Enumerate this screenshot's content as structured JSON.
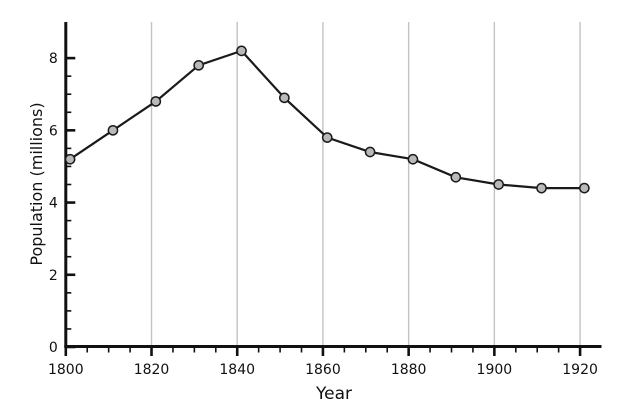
{
  "chart_data": {
    "type": "line",
    "title": "",
    "xlabel": "Year",
    "ylabel": "Population (millions)",
    "x": [
      1801,
      1811,
      1821,
      1831,
      1841,
      1851,
      1861,
      1871,
      1881,
      1891,
      1901,
      1911,
      1921
    ],
    "series": [
      {
        "name": "Population (millions)",
        "values": [
          5.2,
          6.0,
          6.8,
          7.8,
          8.2,
          6.9,
          5.8,
          5.4,
          5.2,
          4.7,
          4.5,
          4.4,
          4.4
        ]
      }
    ],
    "xlim": [
      1800,
      1925
    ],
    "ylim": [
      0,
      9
    ],
    "x_major_ticks": [
      1800,
      1820,
      1840,
      1860,
      1880,
      1900,
      1920
    ],
    "x_tick_labels": [
      "1800",
      "1820",
      "1840",
      "1860",
      "1880",
      "1900",
      "1920"
    ],
    "x_minor_tick_step": 5,
    "x_minor_tick_max": 1920,
    "y_major_ticks": [
      0,
      2,
      4,
      6,
      8
    ],
    "y_tick_labels": [
      "0",
      "2",
      "4",
      "6",
      "8"
    ],
    "y_minor_tick_step": 0.5,
    "y_minor_tick_max": 8,
    "grid": {
      "vertical_on_x_major": true,
      "horizontal": false
    },
    "legend": "none",
    "marker": "circle",
    "colors": {
      "line": "#1a1a1a",
      "marker_fill": "#b9b9b9",
      "marker_edge": "#1a1a1a",
      "grid": "#c3c3c3",
      "axis": "#111111",
      "text": "#111111",
      "background": "#ffffff"
    }
  }
}
